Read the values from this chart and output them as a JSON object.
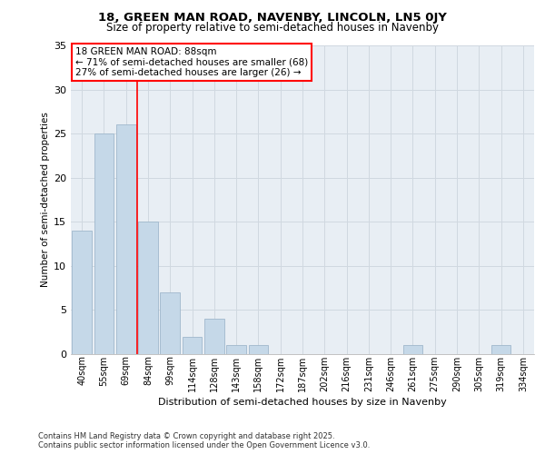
{
  "title1": "18, GREEN MAN ROAD, NAVENBY, LINCOLN, LN5 0JY",
  "title2": "Size of property relative to semi-detached houses in Navenby",
  "xlabel": "Distribution of semi-detached houses by size in Navenby",
  "ylabel": "Number of semi-detached properties",
  "categories": [
    "40sqm",
    "55sqm",
    "69sqm",
    "84sqm",
    "99sqm",
    "114sqm",
    "128sqm",
    "143sqm",
    "158sqm",
    "172sqm",
    "187sqm",
    "202sqm",
    "216sqm",
    "231sqm",
    "246sqm",
    "261sqm",
    "275sqm",
    "290sqm",
    "305sqm",
    "319sqm",
    "334sqm"
  ],
  "values": [
    14,
    25,
    26,
    15,
    7,
    2,
    4,
    1,
    1,
    0,
    0,
    0,
    0,
    0,
    0,
    1,
    0,
    0,
    0,
    1,
    0
  ],
  "bar_color": "#c5d8e8",
  "bar_edge_color": "#a0b8cc",
  "grid_color": "#d0d8e0",
  "bg_color": "#e8eef4",
  "vline_x": 2.5,
  "vline_color": "red",
  "annotation_title": "18 GREEN MAN ROAD: 88sqm",
  "annotation_line1": "← 71% of semi-detached houses are smaller (68)",
  "annotation_line2": "27% of semi-detached houses are larger (26) →",
  "annotation_box_color": "white",
  "annotation_box_edge": "red",
  "footer1": "Contains HM Land Registry data © Crown copyright and database right 2025.",
  "footer2": "Contains public sector information licensed under the Open Government Licence v3.0.",
  "ylim": [
    0,
    35
  ],
  "yticks": [
    0,
    5,
    10,
    15,
    20,
    25,
    30,
    35
  ]
}
